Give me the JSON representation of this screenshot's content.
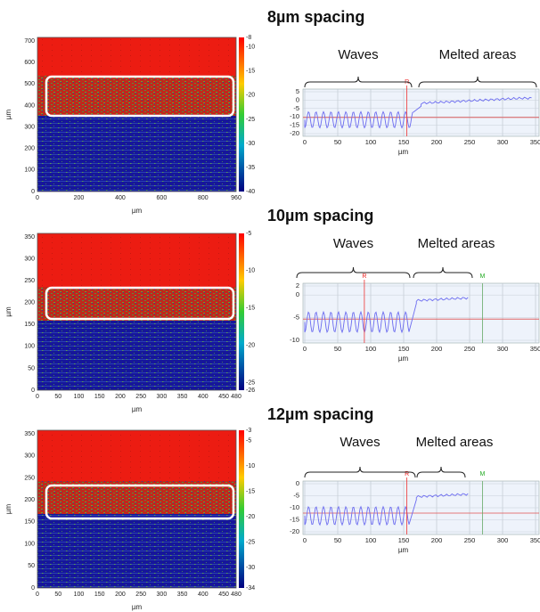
{
  "panels": [
    {
      "title": "8µm spacing",
      "map": {
        "x_ticks": [
          "0",
          "200",
          "400",
          "600",
          "800",
          "960"
        ],
        "y_ticks": [
          "0",
          "100",
          "200",
          "300",
          "400",
          "500",
          "600",
          "700"
        ],
        "colorbar_ticks": [
          "-8",
          "-10",
          "-15",
          "-20",
          "-25",
          "-30",
          "-35",
          "-40"
        ],
        "x_label": "µm",
        "y_label": "µm"
      },
      "profile": {
        "regions": [
          "Waves",
          "Melted areas"
        ],
        "y_ticks": [
          "5",
          "0",
          "-5",
          "-10",
          "-15",
          "-20"
        ],
        "x_ticks": [
          "0",
          "50",
          "100",
          "150",
          "200",
          "250",
          "300",
          "350"
        ],
        "x_label": "µm",
        "markers": [
          "R"
        ]
      }
    },
    {
      "title": "10µm spacing",
      "map": {
        "x_ticks": [
          "0",
          "50",
          "100",
          "150",
          "200",
          "250",
          "300",
          "350",
          "400",
          "450",
          "480"
        ],
        "y_ticks": [
          "0",
          "50",
          "100",
          "150",
          "200",
          "250",
          "300",
          "350"
        ],
        "colorbar_ticks": [
          "-5",
          "-10",
          "-15",
          "-20",
          "-25",
          "-26"
        ],
        "x_label": "µm",
        "y_label": "µm"
      },
      "profile": {
        "regions": [
          "Waves",
          "Melted areas"
        ],
        "y_ticks": [
          "2",
          "0",
          "-5",
          "-10"
        ],
        "x_ticks": [
          "0",
          "50",
          "100",
          "150",
          "200",
          "250",
          "300",
          "350"
        ],
        "x_label": "µm",
        "markers": [
          "R",
          "M"
        ]
      }
    },
    {
      "title": "12µm spacing",
      "map": {
        "x_ticks": [
          "0",
          "50",
          "100",
          "150",
          "200",
          "250",
          "300",
          "350",
          "400",
          "450",
          "480"
        ],
        "y_ticks": [
          "0",
          "50",
          "100",
          "150",
          "200",
          "250",
          "300",
          "350"
        ],
        "colorbar_ticks": [
          "-3",
          "-5",
          "-10",
          "-15",
          "-20",
          "-25",
          "-30",
          "-34"
        ],
        "x_label": "µm",
        "y_label": "µm"
      },
      "profile": {
        "regions": [
          "Waves",
          "Melted areas"
        ],
        "y_ticks": [
          "0",
          "-5",
          "-10",
          "-15",
          "-20"
        ],
        "x_ticks": [
          "0",
          "50",
          "100",
          "150",
          "200",
          "250",
          "300",
          "350"
        ],
        "x_label": "µm",
        "markers": [
          "R",
          "M"
        ]
      }
    }
  ]
}
